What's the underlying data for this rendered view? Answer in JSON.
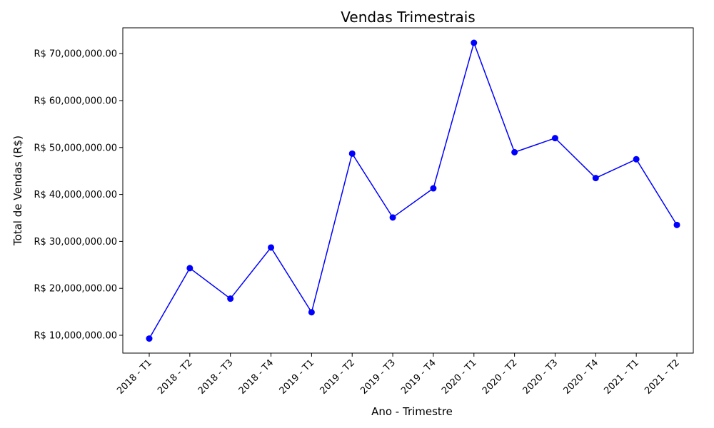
{
  "chart_data": {
    "type": "line",
    "title": "Vendas Trimestrais",
    "xlabel": "Ano - Trimestre",
    "ylabel": "Total de Vendas (R$)",
    "categories": [
      "2018 - T1",
      "2018 - T2",
      "2018 - T3",
      "2018 - T4",
      "2019 - T1",
      "2019 - T2",
      "2019 - T3",
      "2019 - T4",
      "2020 - T1",
      "2020 - T2",
      "2020 - T3",
      "2020 - T4",
      "2021 - T1",
      "2021 - T2"
    ],
    "values": [
      9300000,
      24300000,
      17800000,
      28700000,
      14900000,
      48700000,
      35100000,
      41300000,
      72300000,
      49000000,
      52000000,
      43500000,
      47500000,
      33500000
    ],
    "ylim": [
      6200000,
      75500000
    ],
    "yticks": [
      10000000,
      20000000,
      30000000,
      40000000,
      50000000,
      60000000,
      70000000
    ],
    "ytick_labels": [
      "R$ 10,000,000.00",
      "R$ 20,000,000.00",
      "R$ 30,000,000.00",
      "R$ 40,000,000.00",
      "R$ 50,000,000.00",
      "R$ 60,000,000.00",
      "R$ 70,000,000.00"
    ],
    "line_color": "#0000ff",
    "marker": "circle",
    "grid": false
  }
}
